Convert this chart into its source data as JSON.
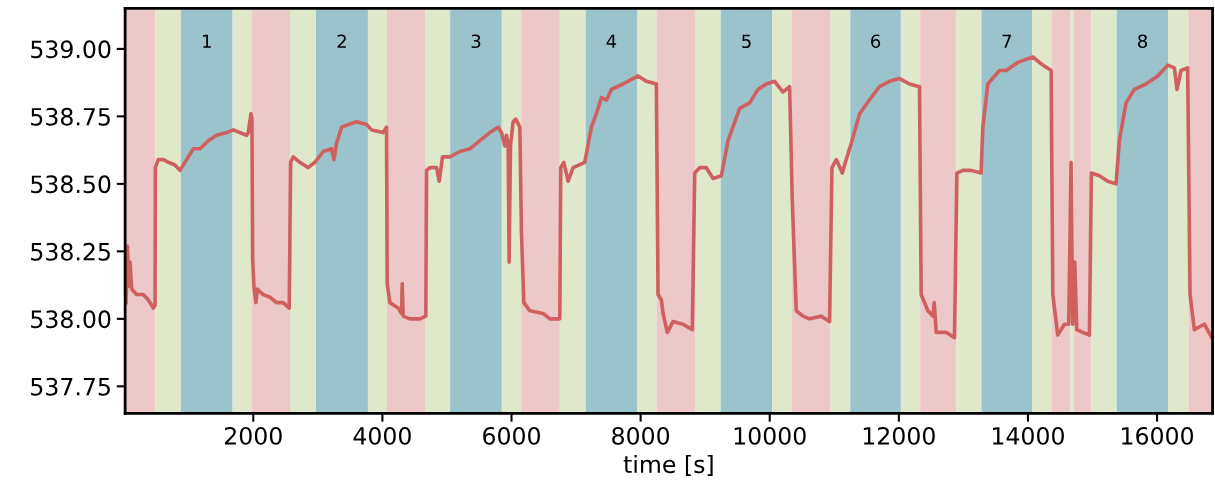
{
  "chart_data": {
    "type": "line",
    "xlabel": "time [s]",
    "x": [
      29,
      50,
      70,
      91,
      117,
      194,
      297,
      375,
      452,
      478,
      483,
      529,
      607,
      684,
      787,
      865,
      968,
      1071,
      1174,
      1303,
      1432,
      1587,
      1690,
      1794,
      1897,
      1923,
      1964,
      1979,
      1990,
      2010,
      2041,
      2062,
      2155,
      2258,
      2361,
      2464,
      2557,
      2578,
      2619,
      2722,
      2851,
      2955,
      3084,
      3213,
      3249,
      3290,
      3367,
      3470,
      3600,
      3754,
      3832,
      4012,
      4064,
      4074,
      4116,
      4245,
      4297,
      4307,
      4322,
      4425,
      4528,
      4581,
      4673,
      4684,
      4735,
      4839,
      4880,
      4931,
      5045,
      5200,
      5355,
      5509,
      5664,
      5793,
      5845,
      5897,
      5922,
      5948,
      5963,
      5984,
      6025,
      6067,
      6129,
      6154,
      6191,
      6283,
      6490,
      6593,
      6748,
      6763,
      6810,
      6877,
      6954,
      7135,
      7238,
      7315,
      7393,
      7470,
      7548,
      7728,
      7960,
      8089,
      8244,
      8270,
      8322,
      8347,
      8414,
      8502,
      8657,
      8801,
      8838,
      8915,
      9018,
      9122,
      9251,
      9354,
      9534,
      9689,
      9818,
      9947,
      10076,
      10205,
      10308,
      10349,
      10411,
      10515,
      10618,
      10798,
      10927,
      10964,
      11031,
      11124,
      11185,
      11263,
      11392,
      11572,
      11701,
      11856,
      12011,
      12166,
      12320,
      12346,
      12450,
      12527,
      12548,
      12579,
      12733,
      12862,
      12899,
      12992,
      13120,
      13275,
      13301,
      13378,
      13559,
      13662,
      13843,
      14075,
      14230,
      14359,
      14385,
      14462,
      14565,
      14632,
      14668,
      14694,
      14725,
      14756,
      14849,
      14952,
      14983,
      15107,
      15236,
      15365,
      15416,
      15520,
      15649,
      15829,
      16010,
      16165,
      16268,
      16309,
      16371,
      16474,
      16511,
      16578,
      16733,
      16850
    ],
    "series": [
      {
        "color": "#d06060",
        "values": [
          538.06,
          538.27,
          538.12,
          538.21,
          538.11,
          538.09,
          538.09,
          538.07,
          538.04,
          538.05,
          538.56,
          538.59,
          538.59,
          538.58,
          538.57,
          538.55,
          538.59,
          538.63,
          538.63,
          538.66,
          538.68,
          538.69,
          538.7,
          538.69,
          538.68,
          538.69,
          538.76,
          538.74,
          538.22,
          538.12,
          538.06,
          538.11,
          538.09,
          538.08,
          538.06,
          538.06,
          538.04,
          538.58,
          538.6,
          538.58,
          538.56,
          538.58,
          538.62,
          538.63,
          538.59,
          538.65,
          538.71,
          538.72,
          538.73,
          538.72,
          538.7,
          538.69,
          538.71,
          538.13,
          538.06,
          538.04,
          538.02,
          538.13,
          538.01,
          538.0,
          538.0,
          538.0,
          538.01,
          538.55,
          538.56,
          538.56,
          538.51,
          538.6,
          538.6,
          538.62,
          538.63,
          538.66,
          538.69,
          538.71,
          538.69,
          538.64,
          538.68,
          538.65,
          538.21,
          538.64,
          538.73,
          538.74,
          538.71,
          538.32,
          538.06,
          538.03,
          538.02,
          538.0,
          538.0,
          538.56,
          538.58,
          538.51,
          538.56,
          538.58,
          538.71,
          538.76,
          538.82,
          538.81,
          538.85,
          538.87,
          538.9,
          538.88,
          538.87,
          538.09,
          538.07,
          538.02,
          537.95,
          537.99,
          537.98,
          537.96,
          538.54,
          538.56,
          538.56,
          538.52,
          538.53,
          538.66,
          538.78,
          538.8,
          538.85,
          538.87,
          538.88,
          538.84,
          538.86,
          538.44,
          538.03,
          538.01,
          538.0,
          538.01,
          537.99,
          538.56,
          538.59,
          538.54,
          538.59,
          538.65,
          538.76,
          538.82,
          538.86,
          538.88,
          538.89,
          538.87,
          538.86,
          538.09,
          538.03,
          538.01,
          538.06,
          537.95,
          537.95,
          537.93,
          538.54,
          538.55,
          538.55,
          538.54,
          538.71,
          538.87,
          538.92,
          538.92,
          538.95,
          538.97,
          538.94,
          538.92,
          538.09,
          537.94,
          537.98,
          537.98,
          538.58,
          537.98,
          538.21,
          537.96,
          537.95,
          537.94,
          538.54,
          538.53,
          538.51,
          538.5,
          538.66,
          538.8,
          538.85,
          538.87,
          538.9,
          538.94,
          538.93,
          538.85,
          538.92,
          538.93,
          538.09,
          537.96,
          537.98,
          537.93
        ]
      }
    ],
    "xlim": [
      15,
      16860
    ],
    "ylim": [
      537.65,
      539.15
    ],
    "xticks": [
      2000,
      4000,
      6000,
      8000,
      10000,
      12000,
      14000,
      16000
    ],
    "yticks": [
      {
        "value": 537.75,
        "label": "537.75"
      },
      {
        "value": 538.0,
        "label": "538.00"
      },
      {
        "value": 538.25,
        "label": "538.25"
      },
      {
        "value": 538.5,
        "label": "538.50"
      },
      {
        "value": 538.75,
        "label": "538.75"
      },
      {
        "value": 539.0,
        "label": "539.00"
      }
    ],
    "grid": false,
    "bands": [
      {
        "axis": "x",
        "from": 15,
        "to": 480,
        "color": "#ecc8c8"
      },
      {
        "axis": "x",
        "from": 480,
        "to": 880,
        "color": "#e0e8cc"
      },
      {
        "axis": "x",
        "from": 880,
        "to": 1680,
        "color": "#9ac3cc",
        "label": "1"
      },
      {
        "axis": "x",
        "from": 1680,
        "to": 1980,
        "color": "#e0e8cc"
      },
      {
        "axis": "x",
        "from": 1980,
        "to": 2568,
        "color": "#ecc8c8"
      },
      {
        "axis": "x",
        "from": 2568,
        "to": 2971,
        "color": "#e0e8cc"
      },
      {
        "axis": "x",
        "from": 2971,
        "to": 3776,
        "color": "#9ac3cc",
        "label": "2"
      },
      {
        "axis": "x",
        "from": 3776,
        "to": 4070,
        "color": "#e0e8cc"
      },
      {
        "axis": "x",
        "from": 4070,
        "to": 4669,
        "color": "#ecc8c8"
      },
      {
        "axis": "x",
        "from": 4669,
        "to": 5050,
        "color": "#e0e8cc"
      },
      {
        "axis": "x",
        "from": 5050,
        "to": 5850,
        "color": "#9ac3cc",
        "label": "3"
      },
      {
        "axis": "x",
        "from": 5850,
        "to": 6149,
        "color": "#e0e8cc"
      },
      {
        "axis": "x",
        "from": 6149,
        "to": 6748,
        "color": "#ecc8c8"
      },
      {
        "axis": "x",
        "from": 6748,
        "to": 7150,
        "color": "#e0e8cc"
      },
      {
        "axis": "x",
        "from": 7150,
        "to": 7944,
        "color": "#9ac3cc",
        "label": "4"
      },
      {
        "axis": "x",
        "from": 7944,
        "to": 8245,
        "color": "#e0e8cc"
      },
      {
        "axis": "x",
        "from": 8245,
        "to": 8853,
        "color": "#ecc8c8"
      },
      {
        "axis": "x",
        "from": 8853,
        "to": 9240,
        "color": "#e0e8cc"
      },
      {
        "axis": "x",
        "from": 9240,
        "to": 10040,
        "color": "#9ac3cc",
        "label": "5"
      },
      {
        "axis": "x",
        "from": 10040,
        "to": 10339,
        "color": "#e0e8cc"
      },
      {
        "axis": "x",
        "from": 10339,
        "to": 10943,
        "color": "#ecc8c8"
      },
      {
        "axis": "x",
        "from": 10943,
        "to": 11248,
        "color": "#e0e8cc"
      },
      {
        "axis": "x",
        "from": 11248,
        "to": 12031,
        "color": "#9ac3cc",
        "label": "6"
      },
      {
        "axis": "x",
        "from": 12031,
        "to": 12331,
        "color": "#e0e8cc"
      },
      {
        "axis": "x",
        "from": 12331,
        "to": 12893,
        "color": "#ecc8c8"
      },
      {
        "axis": "x",
        "from": 12893,
        "to": 13280,
        "color": "#e0e8cc"
      },
      {
        "axis": "x",
        "from": 13280,
        "to": 14065,
        "color": "#9ac3cc",
        "label": "7"
      },
      {
        "axis": "x",
        "from": 14065,
        "to": 14364,
        "color": "#e0e8cc"
      },
      {
        "axis": "x",
        "from": 14364,
        "to": 14658,
        "color": "#ecc8c8"
      },
      {
        "axis": "x",
        "from": 14658,
        "to": 14705,
        "color": "#e0e8cc"
      },
      {
        "axis": "x",
        "from": 14705,
        "to": 14983,
        "color": "#ecc8c8"
      },
      {
        "axis": "x",
        "from": 14983,
        "to": 15375,
        "color": "#e0e8cc"
      },
      {
        "axis": "x",
        "from": 15375,
        "to": 16175,
        "color": "#9ac3cc",
        "label": "8"
      },
      {
        "axis": "x",
        "from": 16175,
        "to": 16485,
        "color": "#e0e8cc"
      },
      {
        "axis": "x",
        "from": 16485,
        "to": 16860,
        "color": "#ecc8c8"
      }
    ]
  }
}
